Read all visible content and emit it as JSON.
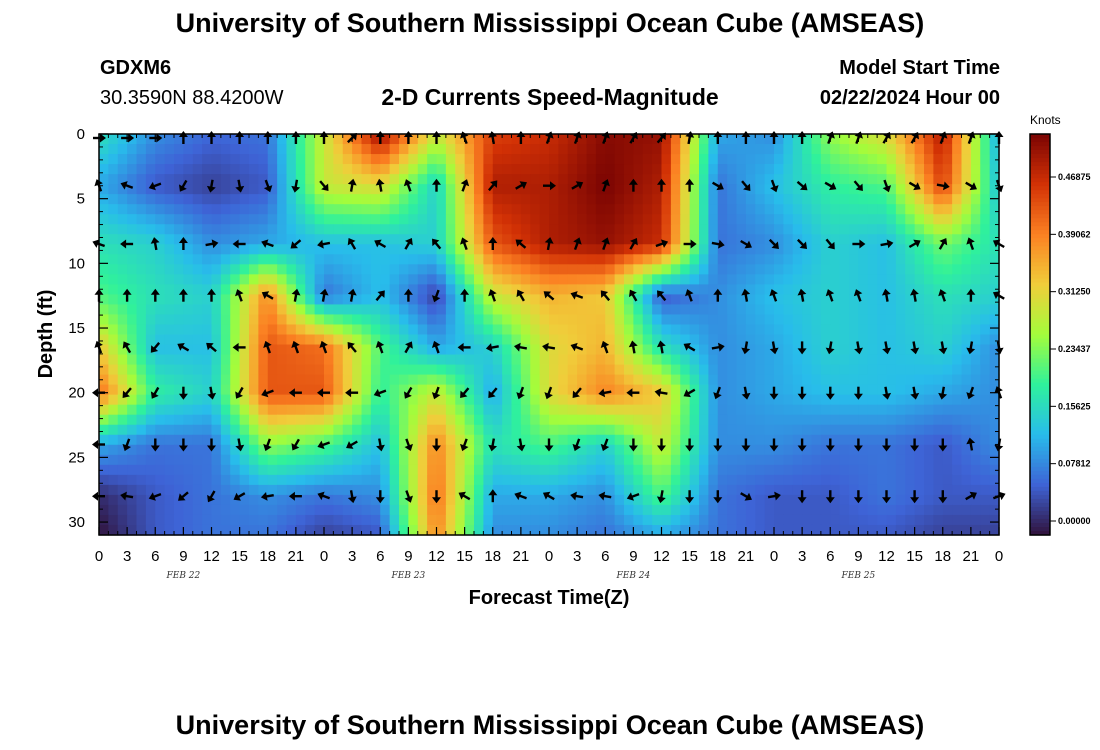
{
  "header": {
    "title": "University of Southern Mississippi Ocean Cube (AMSEAS)",
    "station": "GDXM6",
    "coords": "30.3590N  88.4200W",
    "plot_name": "2-D Currents Speed-Magnitude",
    "model_label": "Model Start Time",
    "model_time": "02/22/2024 Hour 00"
  },
  "footer": {
    "title": "University of Southern Mississippi Ocean Cube (AMSEAS)"
  },
  "colors": {
    "scale": [
      "#30123b",
      "#3e63d6",
      "#28bceb",
      "#2ff19c",
      "#a4fc3b",
      "#f0cd3a",
      "#fb8022",
      "#d23105",
      "#7a0403"
    ]
  },
  "chart_data": {
    "type": "heatmap",
    "title": "2-D Currents Speed-Magnitude",
    "xlabel": "Forecast Time(Z)",
    "ylabel": "Depth (ft)",
    "x_tick_labels": [
      "0",
      "3",
      "6",
      "9",
      "12",
      "15",
      "18",
      "21",
      "0",
      "3",
      "6",
      "9",
      "12",
      "15",
      "18",
      "21",
      "0",
      "3",
      "6",
      "9",
      "12",
      "15",
      "18",
      "21",
      "0",
      "3",
      "6",
      "9",
      "12",
      "15",
      "18",
      "21",
      "0"
    ],
    "date_labels": [
      "FEB 22",
      "FEB 23",
      "FEB 24",
      "FEB 25"
    ],
    "x_range_hours": [
      0,
      96
    ],
    "y_ticks": [
      "0",
      "5",
      "10",
      "15",
      "20",
      "25",
      "30"
    ],
    "y_range_ft": [
      0,
      31
    ],
    "colorbar": {
      "unit": "Knots",
      "labels": [
        "0.00000",
        "0.07812",
        "0.15625",
        "0.23437",
        "0.31250",
        "0.39062",
        "0.46875"
      ],
      "range": [
        0,
        0.54
      ]
    },
    "depths_ft": [
      0,
      4,
      8.5,
      12.5,
      16.5,
      20,
      24,
      28,
      31
    ],
    "times_h": [
      0,
      6,
      12,
      18,
      24,
      30,
      36,
      42,
      48,
      54,
      60,
      66,
      72,
      78,
      84,
      90,
      96
    ],
    "speed_knots": [
      [
        0.18,
        0.1,
        0.07,
        0.08,
        0.3,
        0.52,
        0.3,
        0.46,
        0.48,
        0.53,
        0.52,
        0.12,
        0.1,
        0.26,
        0.32,
        0.5,
        0.12
      ],
      [
        0.12,
        0.06,
        0.04,
        0.06,
        0.3,
        0.32,
        0.16,
        0.5,
        0.5,
        0.54,
        0.5,
        0.08,
        0.14,
        0.2,
        0.22,
        0.46,
        0.14
      ],
      [
        0.18,
        0.16,
        0.1,
        0.12,
        0.14,
        0.14,
        0.16,
        0.44,
        0.5,
        0.52,
        0.48,
        0.08,
        0.1,
        0.16,
        0.14,
        0.24,
        0.18
      ],
      [
        0.22,
        0.18,
        0.16,
        0.4,
        0.08,
        0.14,
        0.04,
        0.3,
        0.36,
        0.34,
        0.06,
        0.1,
        0.14,
        0.16,
        0.14,
        0.18,
        0.16
      ],
      [
        0.34,
        0.14,
        0.14,
        0.44,
        0.42,
        0.22,
        0.12,
        0.16,
        0.32,
        0.36,
        0.18,
        0.1,
        0.12,
        0.16,
        0.14,
        0.16,
        0.1
      ],
      [
        0.42,
        0.2,
        0.16,
        0.44,
        0.44,
        0.2,
        0.3,
        0.12,
        0.32,
        0.4,
        0.34,
        0.1,
        0.12,
        0.14,
        0.14,
        0.12,
        0.1
      ],
      [
        0.12,
        0.08,
        0.08,
        0.26,
        0.22,
        0.14,
        0.4,
        0.18,
        0.22,
        0.16,
        0.3,
        0.1,
        0.1,
        0.08,
        0.08,
        0.06,
        0.1
      ],
      [
        0.02,
        0.06,
        0.08,
        0.1,
        0.08,
        0.1,
        0.42,
        0.12,
        0.12,
        0.1,
        0.22,
        0.08,
        0.06,
        0.06,
        0.08,
        0.06,
        0.06
      ],
      [
        0.0,
        0.06,
        0.08,
        0.08,
        0.04,
        0.06,
        0.4,
        0.1,
        0.1,
        0.08,
        0.12,
        0.08,
        0.06,
        0.06,
        0.06,
        0.04,
        0.04
      ]
    ],
    "vector_depths_ft": [
      0,
      4,
      8.5,
      12.5,
      16.5,
      20,
      24,
      28
    ],
    "vector_directions_deg": [
      [
        90,
        90,
        90,
        180,
        180,
        180,
        180,
        180,
        180,
        135,
        180,
        180,
        180,
        200,
        190,
        180,
        160,
        160,
        160,
        150,
        140,
        170,
        180,
        180,
        180,
        180,
        160,
        160,
        150,
        150,
        160,
        160,
        180
      ],
      [
        200,
        250,
        290,
        330,
        350,
        10,
        20,
        350,
        40,
        170,
        190,
        200,
        180,
        160,
        140,
        120,
        90,
        120,
        160,
        180,
        180,
        180,
        60,
        40,
        20,
        50,
        60,
        40,
        20,
        60,
        80,
        60,
        20
      ],
      [
        250,
        270,
        190,
        180,
        100,
        270,
        250,
        310,
        280,
        210,
        240,
        150,
        220,
        200,
        180,
        230,
        170,
        160,
        160,
        150,
        110,
        90,
        80,
        60,
        45,
        45,
        40,
        90,
        100,
        120,
        150,
        200,
        240
      ],
      [
        180,
        180,
        180,
        180,
        180,
        200,
        240,
        170,
        170,
        170,
        140,
        180,
        340,
        180,
        200,
        210,
        230,
        250,
        220,
        210,
        220,
        200,
        180,
        190,
        200,
        190,
        200,
        200,
        190,
        190,
        200,
        180,
        240
      ],
      [
        200,
        210,
        320,
        240,
        230,
        270,
        200,
        200,
        200,
        220,
        200,
        150,
        200,
        270,
        280,
        260,
        260,
        250,
        200,
        190,
        190,
        240,
        100,
        350,
        10,
        0,
        350,
        10,
        10,
        10,
        10,
        350,
        10
      ],
      [
        270,
        320,
        330,
        0,
        10,
        330,
        290,
        270,
        270,
        270,
        290,
        330,
        340,
        320,
        320,
        340,
        340,
        320,
        280,
        270,
        260,
        300,
        340,
        10,
        0,
        0,
        0,
        0,
        10,
        10,
        350,
        340,
        200
      ],
      [
        270,
        340,
        0,
        0,
        0,
        10,
        340,
        330,
        290,
        300,
        10,
        20,
        0,
        340,
        350,
        10,
        0,
        340,
        340,
        0,
        0,
        0,
        0,
        0,
        0,
        0,
        0,
        0,
        0,
        0,
        0,
        190,
        350
      ],
      [
        270,
        260,
        290,
        310,
        330,
        300,
        280,
        270,
        250,
        10,
        0,
        20,
        0,
        240,
        180,
        250,
        240,
        260,
        260,
        290,
        350,
        0,
        0,
        60,
        100,
        0,
        0,
        0,
        0,
        0,
        0,
        120,
        110
      ]
    ]
  }
}
